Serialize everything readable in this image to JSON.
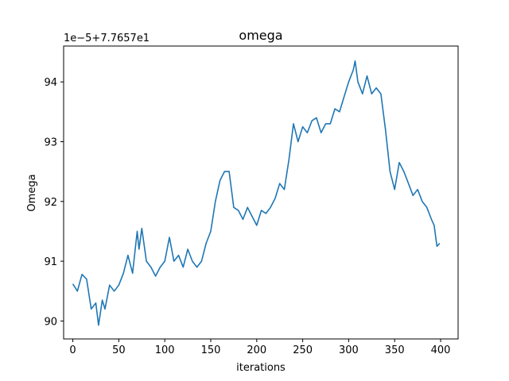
{
  "chart_data": {
    "type": "line",
    "title": "omega",
    "xlabel": "iterations",
    "ylabel": "Omega",
    "offset_text": "1e−5+7.7657e1",
    "xlim": [
      -10,
      419
    ],
    "ylim": [
      89.7,
      94.6
    ],
    "xticks": [
      0,
      50,
      100,
      150,
      200,
      250,
      300,
      350,
      400
    ],
    "yticks": [
      90,
      91,
      92,
      93,
      94
    ],
    "grid": false,
    "series": [
      {
        "color": "#1f77b4",
        "x": [
          0,
          5,
          10,
          15,
          20,
          25,
          28,
          32,
          35,
          40,
          45,
          50,
          55,
          60,
          65,
          70,
          72,
          75,
          80,
          85,
          90,
          95,
          100,
          105,
          110,
          115,
          120,
          125,
          130,
          135,
          140,
          145,
          150,
          155,
          160,
          165,
          170,
          175,
          180,
          185,
          190,
          195,
          200,
          205,
          210,
          215,
          220,
          225,
          230,
          235,
          240,
          245,
          250,
          255,
          260,
          265,
          270,
          275,
          280,
          285,
          290,
          295,
          300,
          305,
          307,
          310,
          315,
          320,
          325,
          330,
          335,
          340,
          345,
          350,
          355,
          360,
          365,
          370,
          375,
          380,
          385,
          390,
          393,
          396,
          399
        ],
        "y": [
          90.62,
          90.5,
          90.78,
          90.7,
          90.2,
          90.3,
          89.93,
          90.35,
          90.2,
          90.6,
          90.5,
          90.6,
          90.8,
          91.1,
          90.8,
          91.5,
          91.2,
          91.55,
          91.0,
          90.9,
          90.75,
          90.9,
          91.0,
          91.4,
          91.0,
          91.1,
          90.9,
          91.2,
          91.0,
          90.9,
          91.0,
          91.3,
          91.5,
          92.0,
          92.35,
          92.5,
          92.5,
          91.9,
          91.85,
          91.7,
          91.9,
          91.75,
          91.6,
          91.85,
          91.8,
          91.9,
          92.05,
          92.3,
          92.2,
          92.7,
          93.3,
          93.0,
          93.25,
          93.15,
          93.35,
          93.4,
          93.15,
          93.3,
          93.3,
          93.55,
          93.5,
          93.75,
          94.0,
          94.2,
          94.35,
          94.0,
          93.8,
          94.1,
          93.8,
          93.9,
          93.8,
          93.2,
          92.5,
          92.2,
          92.65,
          92.5,
          92.3,
          92.1,
          92.2,
          92.0,
          91.9,
          91.7,
          91.6,
          91.25,
          91.3
        ]
      }
    ]
  }
}
